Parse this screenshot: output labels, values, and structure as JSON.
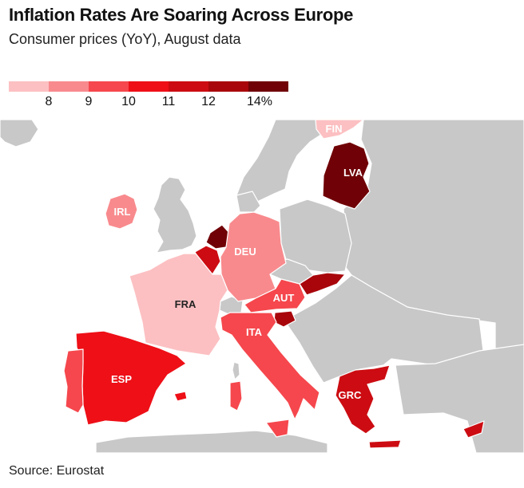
{
  "header": {
    "title": "Inflation Rates Are Soaring Across Europe",
    "subtitle": "Consumer prices (YoY), August data"
  },
  "legend": {
    "colors": [
      "#fcc0c2",
      "#f88a8d",
      "#f5474d",
      "#ee0f17",
      "#cc0c12",
      "#a8060b",
      "#700106"
    ],
    "ticks": [
      "8",
      "9",
      "10",
      "11",
      "12",
      "14%"
    ]
  },
  "map": {
    "colors": {
      "sea": "#ffffff",
      "land": "#c8c8c8",
      "border": "#ffffff"
    },
    "labels": {
      "fin": "FIN",
      "lva": "LVA",
      "irl": "IRL",
      "deu": "DEU",
      "fra": "FRA",
      "aut": "AUT",
      "ita": "ITA",
      "esp": "ESP",
      "grc": "GRC"
    }
  },
  "footer": {
    "source": "Source: Eurostat"
  }
}
